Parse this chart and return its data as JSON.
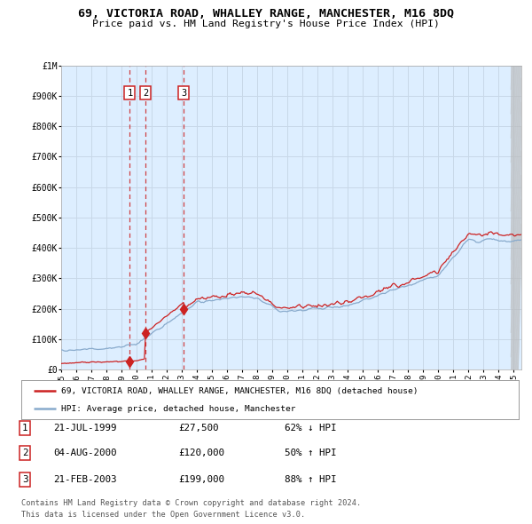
{
  "title": "69, VICTORIA ROAD, WHALLEY RANGE, MANCHESTER, M16 8DQ",
  "subtitle": "Price paid vs. HM Land Registry's House Price Index (HPI)",
  "legend_line1": "69, VICTORIA ROAD, WHALLEY RANGE, MANCHESTER, M16 8DQ (detached house)",
  "legend_line2": "HPI: Average price, detached house, Manchester",
  "transactions": [
    {
      "num": 1,
      "date": "21-JUL-1999",
      "price": 27500,
      "pct": "62%",
      "dir": "↓"
    },
    {
      "num": 2,
      "date": "04-AUG-2000",
      "price": 120000,
      "pct": "50%",
      "dir": "↑"
    },
    {
      "num": 3,
      "date": "21-FEB-2003",
      "price": 199000,
      "pct": "88%",
      "dir": "↑"
    }
  ],
  "transaction_years": [
    1999.55,
    2000.59,
    2003.13
  ],
  "transaction_prices": [
    27500,
    120000,
    199000
  ],
  "footer_line1": "Contains HM Land Registry data © Crown copyright and database right 2024.",
  "footer_line2": "This data is licensed under the Open Government Licence v3.0.",
  "red_color": "#cc2222",
  "blue_color": "#88aacc",
  "plot_bg_color": "#ddeeff",
  "grid_color": "#c8d8e8",
  "ylim_max": 1000000,
  "xlim_min": 1995.0,
  "xlim_max": 2025.5,
  "yticks": [
    0,
    100000,
    200000,
    300000,
    400000,
    500000,
    600000,
    700000,
    800000,
    900000,
    1000000
  ],
  "ylabels": [
    "£0",
    "£100K",
    "£200K",
    "£300K",
    "£400K",
    "£500K",
    "£600K",
    "£700K",
    "£800K",
    "£900K",
    "£1M"
  ]
}
